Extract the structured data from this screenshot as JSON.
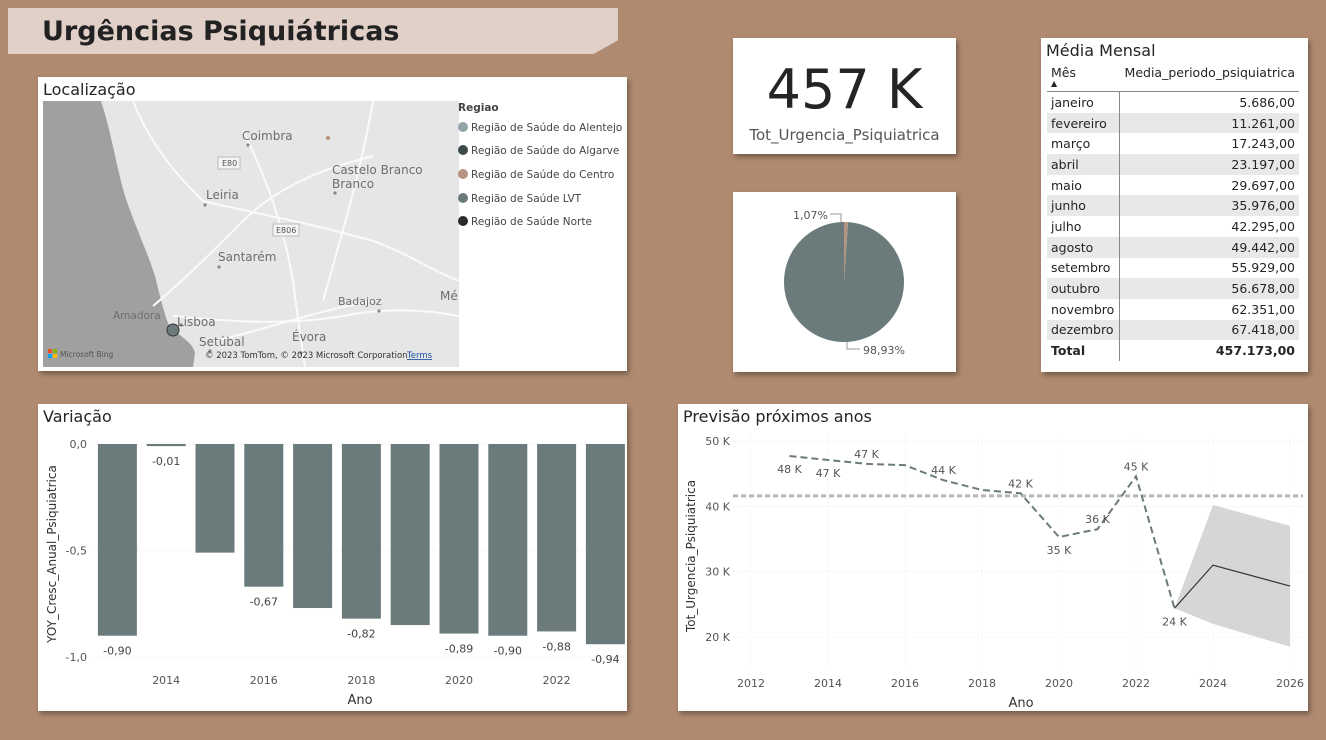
{
  "header": {
    "title": "Urgências Psiquiátricas"
  },
  "kpi": {
    "value": "457 K",
    "label": "Tot_Urgencia_Psiquiatrica"
  },
  "map": {
    "title": "Localização",
    "legend_title": "Regiao",
    "legend": [
      {
        "label": "Região de Saúde do Alentejo",
        "color": "#8fa5a6"
      },
      {
        "label": "Região de Saúde do Algarve",
        "color": "#3e4b4c"
      },
      {
        "label": "Região de Saúde do Centro",
        "color": "#b59582"
      },
      {
        "label": "Região de Saúde LVT",
        "color": "#6b7b7c"
      },
      {
        "label": "Região de Saúde Norte",
        "color": "#2b2b2b"
      }
    ],
    "places": [
      "Coimbra",
      "Castelo Branco",
      "Leiria",
      "Santarém",
      "Badajoz",
      "Amadora",
      "Lisboa",
      "Setúbal",
      "Évora",
      "Mé"
    ],
    "roads": [
      "E80",
      "E806"
    ],
    "attribution": "© 2023 TomTom, © 2023 Microsoft Corporation",
    "terms": "Terms",
    "bing": "Microsoft Bing"
  },
  "pie": {
    "slices": [
      {
        "label": "1,07%",
        "value": 1.07,
        "color": "#b59582"
      },
      {
        "label": "98,93%",
        "value": 98.93,
        "color": "#6b7b7c"
      }
    ]
  },
  "table": {
    "title": "Média Mensal",
    "col_month": "Mês",
    "col_value": "Media_periodo_psiquiatrica",
    "rows": [
      {
        "mes": "janeiro",
        "valor": "5.686,00"
      },
      {
        "mes": "fevereiro",
        "valor": "11.261,00"
      },
      {
        "mes": "março",
        "valor": "17.243,00"
      },
      {
        "mes": "abril",
        "valor": "23.197,00"
      },
      {
        "mes": "maio",
        "valor": "29.697,00"
      },
      {
        "mes": "junho",
        "valor": "35.976,00"
      },
      {
        "mes": "julho",
        "valor": "42.295,00"
      },
      {
        "mes": "agosto",
        "valor": "49.442,00"
      },
      {
        "mes": "setembro",
        "valor": "55.929,00"
      },
      {
        "mes": "outubro",
        "valor": "56.678,00"
      },
      {
        "mes": "novembro",
        "valor": "62.351,00"
      },
      {
        "mes": "dezembro",
        "valor": "67.418,00"
      }
    ],
    "total_label": "Total",
    "total_value": "457.173,00"
  },
  "chart_data": [
    {
      "type": "bar",
      "title": "Variação",
      "xlabel": "Ano",
      "ylabel": "YOY_Cresc_Anual_Psiquiatrica",
      "x": [
        2013,
        2014,
        2015,
        2016,
        2017,
        2018,
        2019,
        2020,
        2021,
        2022,
        2023
      ],
      "values": [
        -0.9,
        -0.01,
        -0.51,
        -0.67,
        -0.77,
        -0.82,
        -0.85,
        -0.89,
        -0.9,
        -0.88,
        -0.94
      ],
      "data_labels": {
        "2013": "-0,90",
        "2014": "-0,01",
        "2016": "-0,67",
        "2018": "-0,82",
        "2020": "-0,89",
        "2021": "-0,90",
        "2022": "-0,88",
        "2023": "-0,94"
      },
      "xticks": [
        "2014",
        "2016",
        "2018",
        "2020",
        "2022"
      ],
      "yticks": [
        {
          "v": 0,
          "label": "0,0"
        },
        {
          "v": -0.5,
          "label": "-0,5"
        },
        {
          "v": -1.0,
          "label": "-1,0"
        }
      ],
      "ylim": [
        -1.0,
        0.0
      ],
      "color": "#6b7b7c"
    },
    {
      "type": "line",
      "title": "Previsão próximos anos",
      "xlabel": "Ano",
      "ylabel": "Tot_Urgencia_Psiquiatrica",
      "x": [
        2013,
        2014,
        2015,
        2016,
        2017,
        2018,
        2019,
        2020,
        2021,
        2022,
        2023
      ],
      "values": [
        47.7,
        47.1,
        46.5,
        46.3,
        44.0,
        42.5,
        42.0,
        35.3,
        36.5,
        44.6,
        24.4
      ],
      "labels": [
        {
          "x": 2013,
          "y": 47.7,
          "text": "48 K"
        },
        {
          "x": 2014,
          "y": 47.1,
          "text": "47 K"
        },
        {
          "x": 2015,
          "y": 46.5,
          "text": "47 K"
        },
        {
          "x": 2017,
          "y": 44.0,
          "text": "44 K"
        },
        {
          "x": 2019,
          "y": 42.0,
          "text": "42 K"
        },
        {
          "x": 2020,
          "y": 35.3,
          "text": "35 K"
        },
        {
          "x": 2021,
          "y": 36.5,
          "text": "36 K"
        },
        {
          "x": 2022,
          "y": 44.6,
          "text": "45 K"
        },
        {
          "x": 2023,
          "y": 24.4,
          "text": "24 K"
        }
      ],
      "average": 41.6,
      "forecast": {
        "x": [
          2023,
          2024,
          2026
        ],
        "values": [
          24.4,
          31.0,
          27.8
        ],
        "upper": [
          24.4,
          40.2,
          37.0
        ],
        "lower": [
          24.4,
          22.0,
          18.5
        ]
      },
      "xticks": [
        2012,
        2014,
        2016,
        2018,
        2020,
        2022,
        2024,
        2026
      ],
      "yticks": [
        {
          "v": 20,
          "label": "20 K"
        },
        {
          "v": 30,
          "label": "30 K"
        },
        {
          "v": 40,
          "label": "40 K"
        },
        {
          "v": 50,
          "label": "50 K"
        }
      ],
      "xlim": [
        2012,
        2026
      ],
      "ylim": [
        18,
        50
      ]
    }
  ]
}
